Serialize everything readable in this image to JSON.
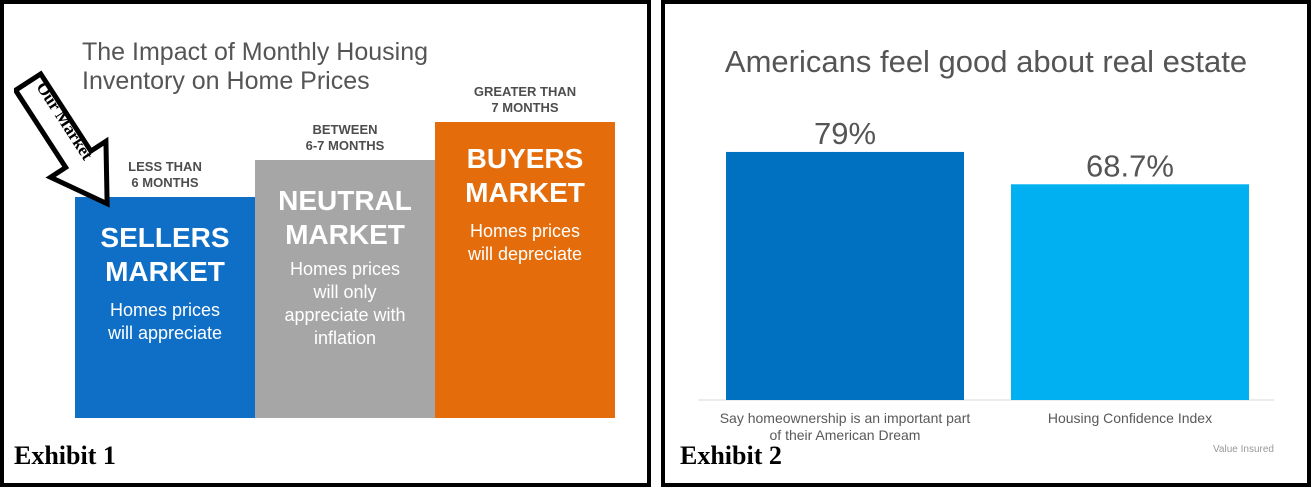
{
  "exhibit1": {
    "label": "Exhibit 1",
    "title_line1": "The Impact of Monthly Housing",
    "title_line2": "Inventory on Home Prices",
    "arrow_label": "Our Market",
    "columns": [
      {
        "caption_line1": "LESS THAN",
        "caption_line2": "6 MONTHS",
        "title_line1": "SELLERS",
        "title_line2": "MARKET",
        "desc": [
          "Homes prices",
          "will appreciate"
        ],
        "color": "#0f6fc6",
        "level": 1
      },
      {
        "caption_line1": "BETWEEN",
        "caption_line2": "6-7 MONTHS",
        "title_line1": "NEUTRAL",
        "title_line2": "MARKET",
        "desc": [
          "Homes prices",
          "will only",
          "appreciate with",
          "inflation"
        ],
        "color": "#a6a6a6",
        "level": 2
      },
      {
        "caption_line1": "GREATER THAN",
        "caption_line2": "7 MONTHS",
        "title_line1": "BUYERS",
        "title_line2": "MARKET",
        "desc": [
          "Homes prices",
          "will depreciate"
        ],
        "color": "#e46c0a",
        "level": 3
      }
    ]
  },
  "exhibit2": {
    "label": "Exhibit 2",
    "source": "Value Insured",
    "chart_data": {
      "type": "bar",
      "title": "Americans feel good about real estate",
      "categories": [
        [
          "Say homeownership is an important part",
          "of their American Dream"
        ],
        [
          "Housing Confidence Index"
        ]
      ],
      "values": [
        79,
        68.7
      ],
      "value_labels": [
        "79%",
        "68.7%"
      ],
      "colors": [
        "#0070c0",
        "#00b0f0"
      ],
      "ylim": [
        0,
        100
      ],
      "grid": false,
      "legend": "none"
    }
  }
}
